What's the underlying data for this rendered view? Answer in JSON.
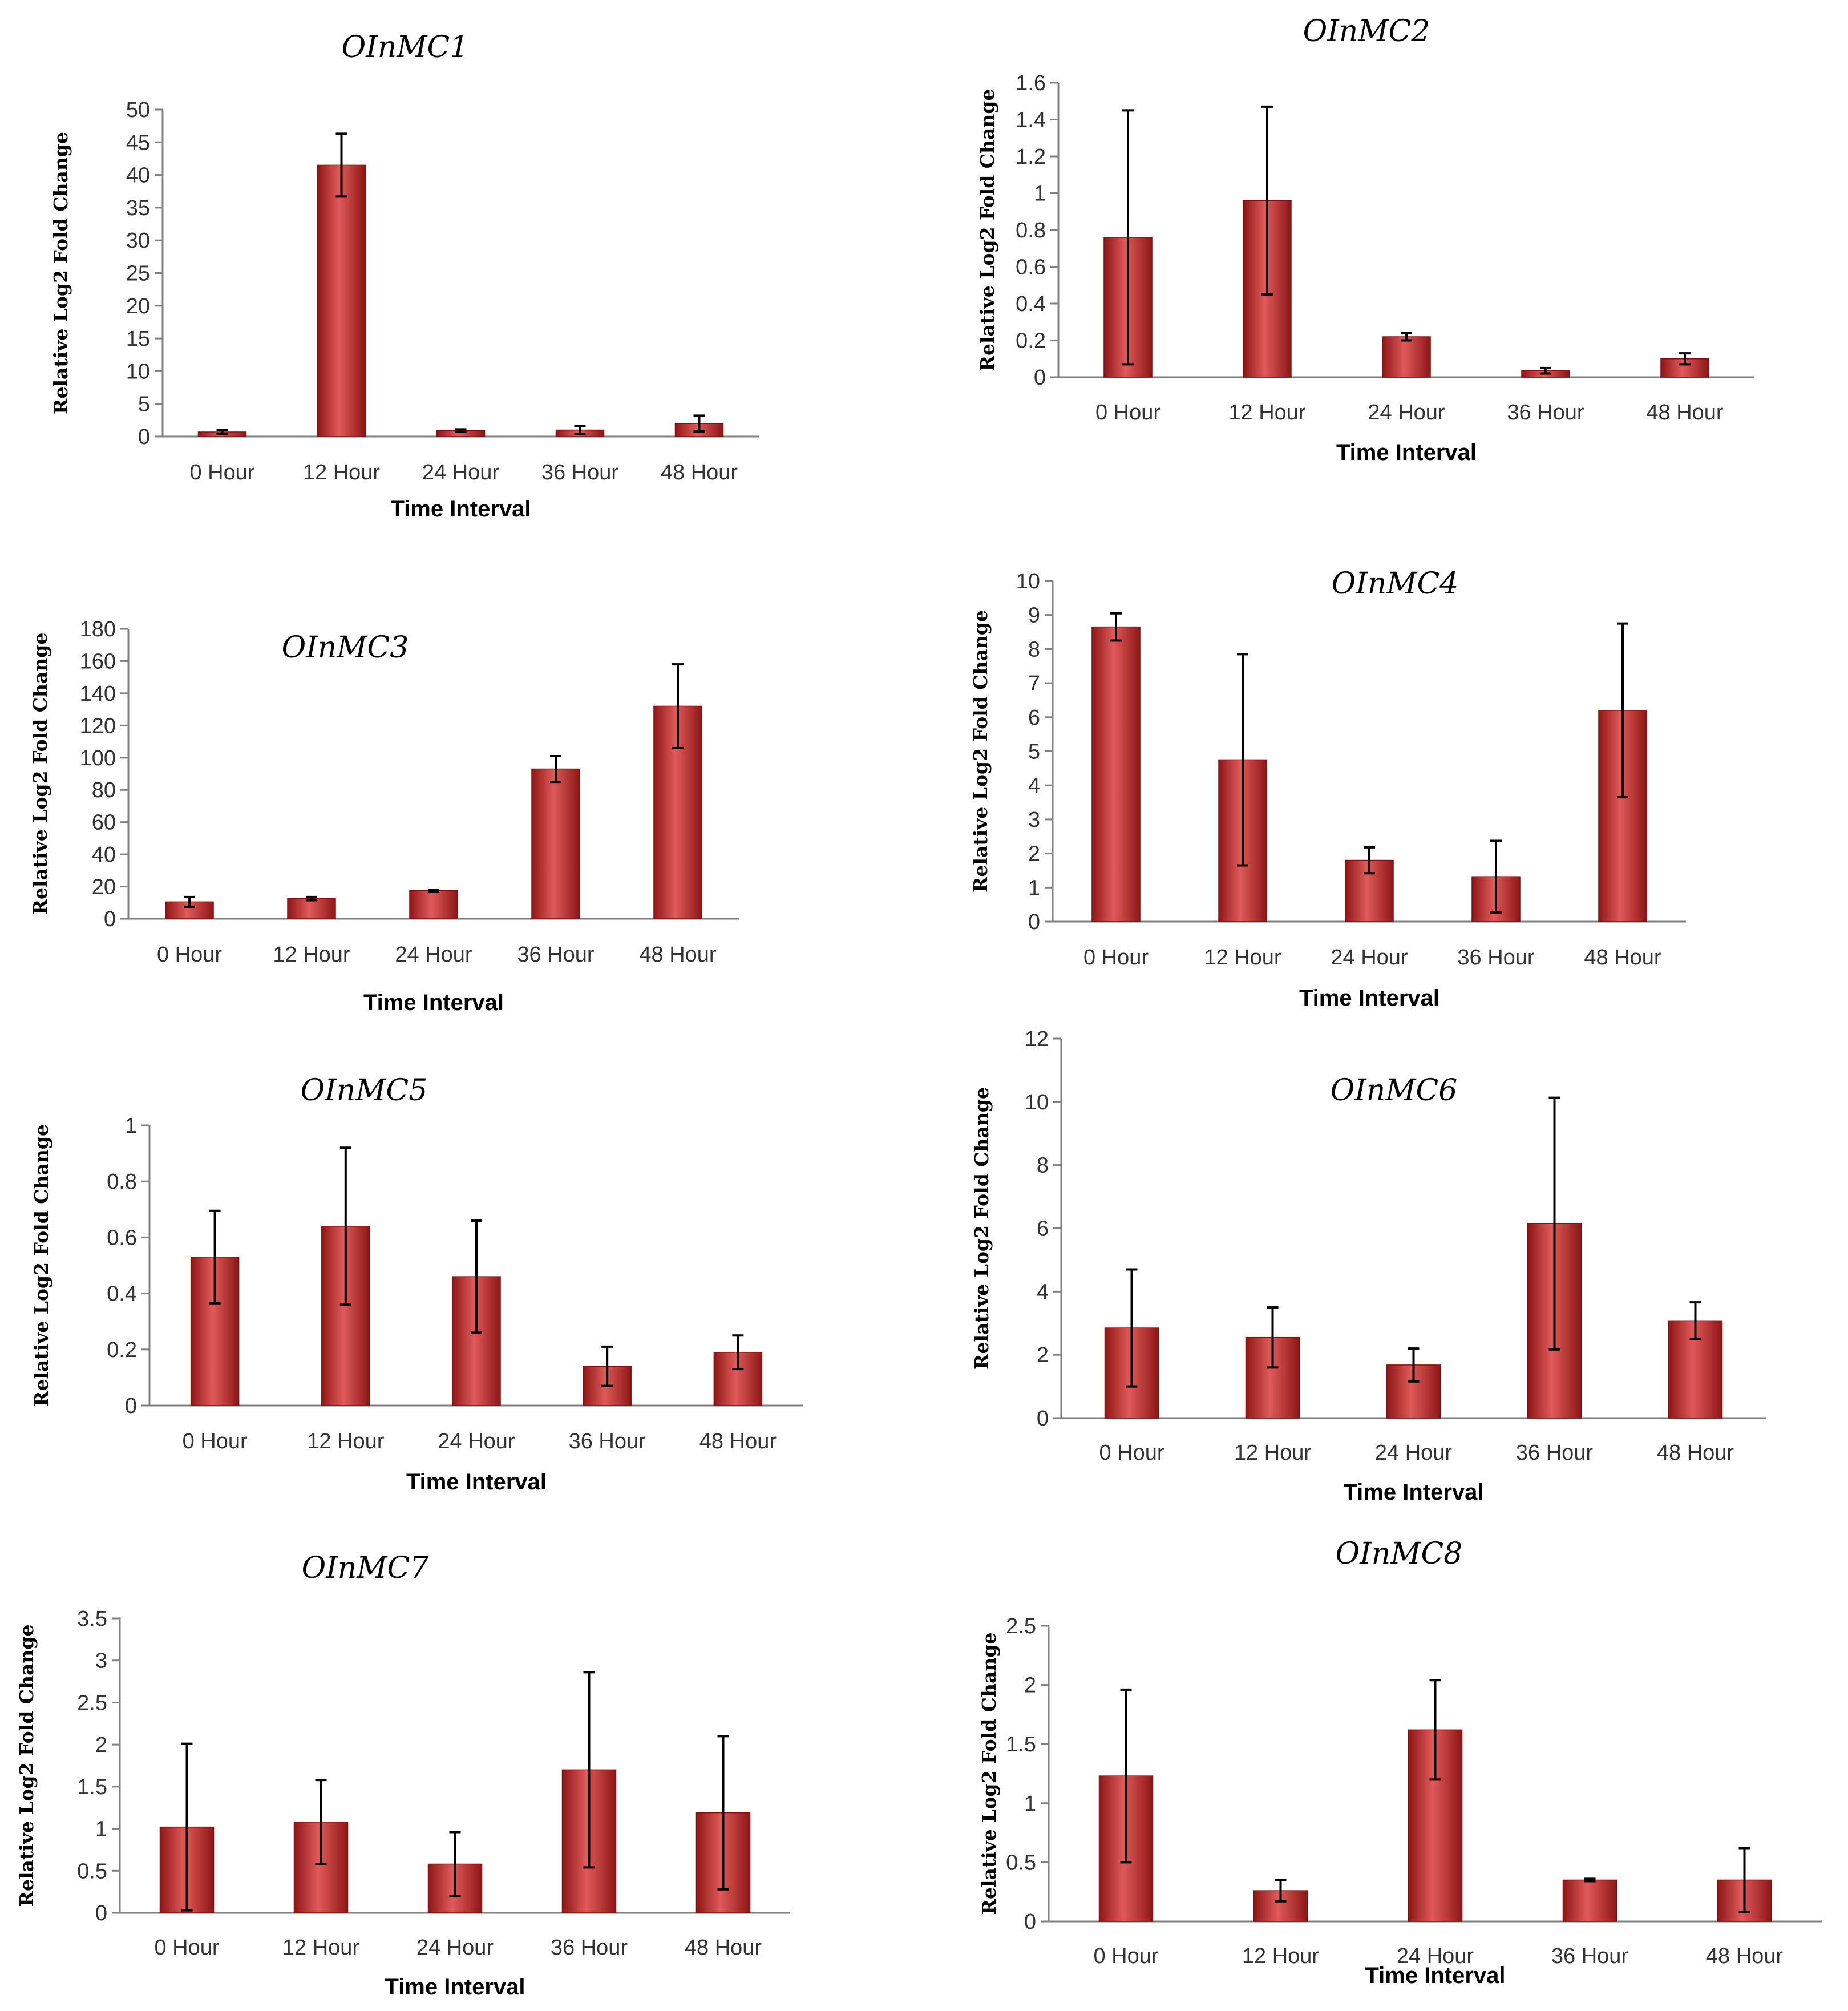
{
  "colors": {
    "bar_dark": "#8e1616",
    "bar_light": "#e05a5a",
    "bar_mid": "#c22a2a"
  },
  "chart_data": [
    {
      "type": "bar",
      "title": "OInMC1",
      "xlabel": "Time Interval",
      "ylabel": "Relative Log2 Fold Change",
      "categories": [
        "0 Hour",
        "12 Hour",
        "24 Hour",
        "36 Hour",
        "48 Hour"
      ],
      "values": [
        0.7,
        41.5,
        0.9,
        1.0,
        2.0
      ],
      "errors": [
        0.3,
        4.8,
        0.2,
        0.6,
        1.2
      ],
      "ylim": [
        0,
        50
      ],
      "yticks": [
        0,
        5,
        10,
        15,
        20,
        25,
        30,
        35,
        40,
        45,
        50
      ],
      "ytick_labels": [
        "0",
        "5",
        "10",
        "15",
        "20",
        "25",
        "30",
        "35",
        "40",
        "45",
        "50"
      ]
    },
    {
      "type": "bar",
      "title": "OInMC2",
      "xlabel": "Time Interval",
      "ylabel": "Relative Log2 Fold Change",
      "categories": [
        "0 Hour",
        "12 Hour",
        "24 Hour",
        "36 Hour",
        "48 Hour"
      ],
      "values": [
        0.76,
        0.96,
        0.22,
        0.035,
        0.1
      ],
      "errors": [
        0.69,
        0.51,
        0.02,
        0.015,
        0.03
      ],
      "ylim": [
        0,
        1.6
      ],
      "yticks": [
        0,
        0.2,
        0.4,
        0.6,
        0.8,
        1.0,
        1.2,
        1.4,
        1.6
      ],
      "ytick_labels": [
        "0",
        "0.2",
        "0.4",
        "0.6",
        "0.8",
        "1",
        "1.2",
        "1.4",
        "1.6"
      ]
    },
    {
      "type": "bar",
      "title": "OInMC3",
      "xlabel": "Time Interval",
      "ylabel": "Relative Log2 Fold Change",
      "categories": [
        "0 Hour",
        "12 Hour",
        "24 Hour",
        "36 Hour",
        "48 Hour"
      ],
      "values": [
        10.5,
        12.5,
        17.5,
        93,
        132
      ],
      "errors": [
        3,
        1,
        0.5,
        8,
        26
      ],
      "ylim": [
        0,
        180
      ],
      "yticks": [
        0,
        20,
        40,
        60,
        80,
        100,
        120,
        140,
        160,
        180
      ],
      "ytick_labels": [
        "0",
        "20",
        "40",
        "60",
        "80",
        "100",
        "120",
        "140",
        "160",
        "180"
      ]
    },
    {
      "type": "bar",
      "title": "OInMC4",
      "xlabel": "Time Interval",
      "ylabel": "Relative Log2 Fold Change",
      "categories": [
        "0 Hour",
        "12 Hour",
        "24 Hour",
        "36 Hour",
        "48 Hour"
      ],
      "values": [
        8.65,
        4.75,
        1.8,
        1.32,
        6.2
      ],
      "errors": [
        0.4,
        3.1,
        0.38,
        1.05,
        2.55
      ],
      "ylim": [
        0,
        10
      ],
      "yticks": [
        0,
        1,
        2,
        3,
        4,
        5,
        6,
        7,
        8,
        9,
        10
      ],
      "ytick_labels": [
        "0",
        "1",
        "2",
        "3",
        "4",
        "5",
        "6",
        "7",
        "8",
        "9",
        "10"
      ]
    },
    {
      "type": "bar",
      "title": "OInMC5",
      "xlabel": "Time Interval",
      "ylabel": "Relative Log2 Fold Change",
      "categories": [
        "0 Hour",
        "12 Hour",
        "24 Hour",
        "36 Hour",
        "48 Hour"
      ],
      "values": [
        0.53,
        0.64,
        0.46,
        0.14,
        0.19
      ],
      "errors": [
        0.165,
        0.28,
        0.2,
        0.07,
        0.06
      ],
      "ylim": [
        0,
        1
      ],
      "yticks": [
        0,
        0.2,
        0.4,
        0.6,
        0.8,
        1.0
      ],
      "ytick_labels": [
        "0",
        "0.2",
        "0.4",
        "0.6",
        "0.8",
        "1"
      ]
    },
    {
      "type": "bar",
      "title": "OInMC6",
      "xlabel": "Time Interval",
      "ylabel": "Relative Log2 Fold Change",
      "categories": [
        "0 Hour",
        "12 Hour",
        "24 Hour",
        "36 Hour",
        "48 Hour"
      ],
      "values": [
        2.85,
        2.55,
        1.68,
        6.15,
        3.08
      ],
      "errors": [
        1.85,
        0.95,
        0.52,
        3.98,
        0.58
      ],
      "ylim": [
        0,
        12
      ],
      "yticks": [
        0,
        2,
        4,
        6,
        8,
        10,
        12
      ],
      "ytick_labels": [
        "0",
        "2",
        "4",
        "6",
        "8",
        "10",
        "12"
      ]
    },
    {
      "type": "bar",
      "title": "OInMC7",
      "xlabel": "Time Interval",
      "ylabel": "Relative Log2 Fold Change",
      "categories": [
        "0 Hour",
        "12 Hour",
        "24 Hour",
        "36 Hour",
        "48 Hour"
      ],
      "values": [
        1.02,
        1.08,
        0.58,
        1.7,
        1.19
      ],
      "errors": [
        0.99,
        0.5,
        0.38,
        1.16,
        0.91
      ],
      "ylim": [
        0,
        3.5
      ],
      "yticks": [
        0,
        0.5,
        1.0,
        1.5,
        2.0,
        2.5,
        3.0,
        3.5
      ],
      "ytick_labels": [
        "0",
        "0.5",
        "1",
        "1.5",
        "2",
        "2.5",
        "3",
        "3.5"
      ]
    },
    {
      "type": "bar",
      "title": "OInMC8",
      "xlabel": "Time Interval",
      "ylabel": "Relative Log2 Fold Change",
      "categories": [
        "0 Hour",
        "12 Hour",
        "24 Hour",
        "36 Hour",
        "48 Hour"
      ],
      "values": [
        1.23,
        0.26,
        1.62,
        0.35,
        0.35
      ],
      "errors": [
        0.73,
        0.09,
        0.42,
        0.01,
        0.27
      ],
      "ylim": [
        0,
        2.5
      ],
      "yticks": [
        0,
        0.5,
        1.0,
        1.5,
        2.0,
        2.5
      ],
      "ytick_labels": [
        "0",
        "0.5",
        "1",
        "1.5",
        "2",
        "2.5"
      ]
    }
  ]
}
